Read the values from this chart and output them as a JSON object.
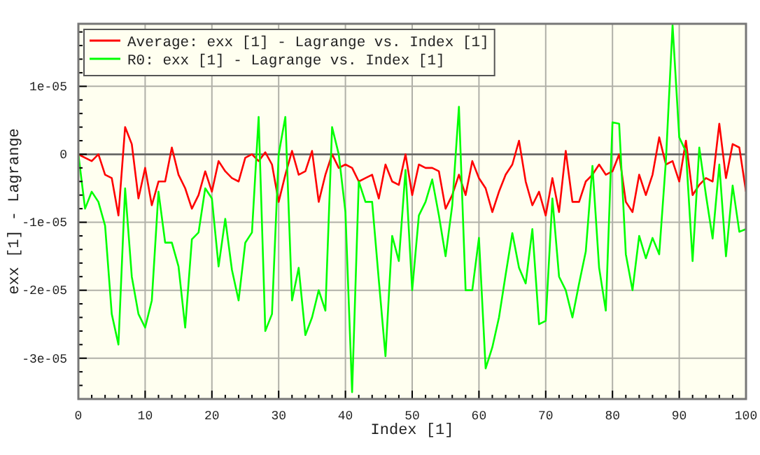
{
  "chart_data": {
    "type": "line",
    "xlabel": "Index [1]",
    "ylabel": "exx [1] - Lagrange",
    "x": [
      0,
      1,
      2,
      3,
      4,
      5,
      6,
      7,
      8,
      9,
      10,
      11,
      12,
      13,
      14,
      15,
      16,
      17,
      18,
      19,
      20,
      21,
      22,
      23,
      24,
      25,
      26,
      27,
      28,
      29,
      30,
      31,
      32,
      33,
      34,
      35,
      36,
      37,
      38,
      39,
      40,
      41,
      42,
      43,
      44,
      45,
      46,
      47,
      48,
      49,
      50,
      51,
      52,
      53,
      54,
      55,
      56,
      57,
      58,
      59,
      60,
      61,
      62,
      63,
      64,
      65,
      66,
      67,
      68,
      69,
      70,
      71,
      72,
      73,
      74,
      75,
      76,
      77,
      78,
      79,
      80,
      81,
      82,
      83,
      84,
      85,
      86,
      87,
      88,
      89,
      90,
      91,
      92,
      93,
      94,
      95,
      96,
      97,
      98,
      99,
      100
    ],
    "series": [
      {
        "name": "Average: exx [1] - Lagrange vs. Index [1]",
        "color": "#ff0000",
        "values": [
          0,
          -5e-07,
          -1e-06,
          0,
          -3e-06,
          -3.5e-06,
          -9e-06,
          4e-06,
          1.5e-06,
          -6.5e-06,
          -2e-06,
          -7.5e-06,
          -4e-06,
          -4e-06,
          1e-06,
          -3e-06,
          -5e-06,
          -8e-06,
          -6e-06,
          -2.5e-06,
          -5.5e-06,
          -1e-06,
          -2.5e-06,
          -3.5e-06,
          -4e-06,
          -5e-07,
          0,
          -1e-06,
          3e-07,
          -1.5e-06,
          -7e-06,
          -3e-06,
          5e-07,
          -3e-06,
          -2.5e-06,
          5e-07,
          -7e-06,
          -3e-06,
          0,
          -2e-06,
          -1.5e-06,
          -2e-06,
          -4e-06,
          -3.5e-06,
          -3e-06,
          -6.5e-06,
          -1.5e-06,
          -4e-06,
          -4.5e-06,
          0,
          -6e-06,
          -1.5e-06,
          -2e-06,
          -2e-06,
          -2.5e-06,
          -8e-06,
          -6e-06,
          -3e-06,
          -6e-06,
          -1e-06,
          -3.5e-06,
          -5e-06,
          -8.5e-06,
          -5.5e-06,
          -3e-06,
          -1.5e-06,
          2e-06,
          -4e-06,
          -7.5e-06,
          -5.5e-06,
          -9e-06,
          -3.5e-06,
          -8.5e-06,
          5e-07,
          -7e-06,
          -7e-06,
          -4e-06,
          -3e-06,
          -1.5e-06,
          -3e-06,
          -2.5e-06,
          0,
          -7e-06,
          -8.5e-06,
          -3e-06,
          -6e-06,
          -3e-06,
          2.5e-06,
          -1.5e-06,
          -1e-06,
          -4e-06,
          2e-06,
          -6e-06,
          -4.5e-06,
          -3.5e-06,
          -4e-06,
          4.5e-06,
          -3.5e-06,
          1.5e-06,
          1e-06,
          -5.5e-06
        ]
      },
      {
        "name": "R0: exx [1] - Lagrange vs. Index [1]",
        "color": "#00ff00",
        "values": [
          0,
          -8e-06,
          -5.5e-06,
          -7e-06,
          -1.05e-05,
          -2.35e-05,
          -2.8e-05,
          -5e-06,
          -1.8e-05,
          -2.35e-05,
          -2.55e-05,
          -2.15e-05,
          -5.5e-06,
          -1.3e-05,
          -1.3e-05,
          -1.65e-05,
          -2.55e-05,
          -1.25e-05,
          -1.15e-05,
          -5e-06,
          -6.5e-06,
          -1.65e-05,
          -9.5e-06,
          -1.7e-05,
          -2.15e-05,
          -1.3e-05,
          -1.15e-05,
          5.5e-06,
          -2.6e-05,
          -2.35e-05,
          0,
          5.5e-06,
          -2.15e-05,
          -1.67e-05,
          -2.66e-05,
          -2.4e-05,
          -2e-05,
          -2.3e-05,
          4e-06,
          0,
          -8.5e-06,
          -3.5e-05,
          -4e-06,
          -7e-06,
          -7e-06,
          -1.85e-05,
          -2.97e-05,
          -1.2e-05,
          -1.57e-05,
          -2.3e-06,
          -2e-05,
          -9e-06,
          -7e-06,
          -3.7e-06,
          -9e-06,
          -1.5e-05,
          -7.5e-06,
          7e-06,
          -2e-05,
          -2e-05,
          -1.23e-05,
          -3.15e-05,
          -2.84e-05,
          -2.4e-05,
          -1.77e-05,
          -1.16e-05,
          -1.67e-05,
          -1.9e-05,
          -1.1e-05,
          -2.5e-05,
          -2.45e-05,
          -6.5e-06,
          -1.8e-05,
          -2e-05,
          -2.4e-05,
          -1.9e-05,
          -1.43e-05,
          -1.7e-06,
          -1.67e-05,
          -2.3e-05,
          4.7e-06,
          4.5e-06,
          -1.47e-05,
          -2e-05,
          -1.2e-05,
          -1.53e-05,
          -1.23e-05,
          -1.47e-05,
          -1e-06,
          1.9e-05,
          2.5e-06,
          4e-07,
          -1.57e-05,
          1e-06,
          -6e-06,
          -1.24e-05,
          -1.5e-06,
          -1.5e-05,
          -4.6e-06,
          -1.14e-05,
          -1.1e-05
        ]
      }
    ],
    "xlim": [
      0,
      100
    ],
    "xticks": [
      0,
      {
        "value": 2,
        "label": null
      },
      {
        "value": 4,
        "label": null
      },
      {
        "value": 6,
        "label": null
      },
      {
        "value": 8,
        "label": null
      },
      10,
      {
        "value": 12,
        "label": null
      },
      {
        "value": 14,
        "label": null
      },
      {
        "value": 16,
        "label": null
      },
      {
        "value": 18,
        "label": null
      },
      20,
      {
        "value": 22,
        "label": null
      },
      {
        "value": 24,
        "label": null
      },
      {
        "value": 26,
        "label": null
      },
      {
        "value": 28,
        "label": null
      },
      30,
      {
        "value": 32,
        "label": null
      },
      {
        "value": 34,
        "label": null
      },
      {
        "value": 36,
        "label": null
      },
      {
        "value": 38,
        "label": null
      },
      40,
      {
        "value": 42,
        "label": null
      },
      {
        "value": 44,
        "label": null
      },
      {
        "value": 46,
        "label": null
      },
      {
        "value": 48,
        "label": null
      },
      50,
      {
        "value": 52,
        "label": null
      },
      {
        "value": 54,
        "label": null
      },
      {
        "value": 56,
        "label": null
      },
      {
        "value": 58,
        "label": null
      },
      60,
      {
        "value": 62,
        "label": null
      },
      {
        "value": 64,
        "label": null
      },
      {
        "value": 66,
        "label": null
      },
      {
        "value": 68,
        "label": null
      },
      70,
      {
        "value": 72,
        "label": null
      },
      {
        "value": 74,
        "label": null
      },
      {
        "value": 76,
        "label": null
      },
      {
        "value": 78,
        "label": null
      },
      80,
      {
        "value": 82,
        "label": null
      },
      {
        "value": 84,
        "label": null
      },
      {
        "value": 86,
        "label": null
      },
      {
        "value": 88,
        "label": null
      },
      90,
      {
        "value": 92,
        "label": null
      },
      {
        "value": 94,
        "label": null
      },
      {
        "value": 96,
        "label": null
      },
      {
        "value": 98,
        "label": null
      },
      100
    ],
    "ylim": [
      -3.6e-05,
      1.92e-05
    ],
    "yticks": [
      {
        "value": -3.4e-05,
        "label": null
      },
      {
        "value": -3.2e-05,
        "label": null
      },
      {
        "value": -3e-05,
        "label": "-3e-05"
      },
      {
        "value": -2.8e-05,
        "label": null
      },
      {
        "value": -2.6e-05,
        "label": null
      },
      {
        "value": -2.4e-05,
        "label": null
      },
      {
        "value": -2.2e-05,
        "label": null
      },
      {
        "value": -2e-05,
        "label": "-2e-05"
      },
      {
        "value": -1.8e-05,
        "label": null
      },
      {
        "value": -1.6e-05,
        "label": null
      },
      {
        "value": -1.4e-05,
        "label": null
      },
      {
        "value": -1.2e-05,
        "label": null
      },
      {
        "value": -1e-05,
        "label": "-1e-05"
      },
      {
        "value": -8e-06,
        "label": null
      },
      {
        "value": -6e-06,
        "label": null
      },
      {
        "value": -4e-06,
        "label": null
      },
      {
        "value": -2e-06,
        "label": null
      },
      {
        "value": 0,
        "label": "0"
      },
      {
        "value": 2e-06,
        "label": null
      },
      {
        "value": 4e-06,
        "label": null
      },
      {
        "value": 6e-06,
        "label": null
      },
      {
        "value": 8e-06,
        "label": null
      },
      {
        "value": 1e-05,
        "label": "1e-05"
      },
      {
        "value": 1.2e-05,
        "label": null
      },
      {
        "value": 1.4e-05,
        "label": null
      },
      {
        "value": 1.6e-05,
        "label": null
      },
      {
        "value": 1.8e-05,
        "label": null
      }
    ],
    "ref_lines": [
      {
        "axis": "y",
        "value": 0,
        "color": "#606060"
      }
    ],
    "grid": true,
    "legend": "top left",
    "marker": "none",
    "line_style": "solid"
  }
}
